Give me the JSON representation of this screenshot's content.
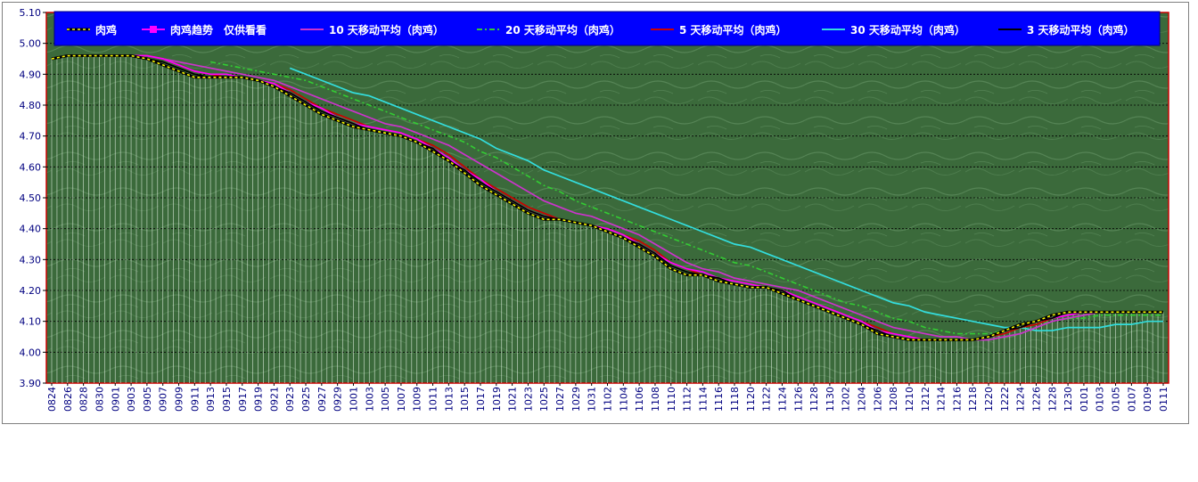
{
  "chart_data": {
    "type": "line",
    "title": "",
    "xlabel": "",
    "ylabel": "",
    "ylim": [
      3.9,
      5.1
    ],
    "y_ticks": [
      "5.10",
      "5.00",
      "4.90",
      "4.80",
      "4.70",
      "4.60",
      "4.50",
      "4.40",
      "4.30",
      "4.20",
      "4.10",
      "4.00",
      "3.90"
    ],
    "categories": [
      "0824",
      "0826",
      "0828",
      "0830",
      "0901",
      "0903",
      "0905",
      "0907",
      "0909",
      "0911",
      "0913",
      "0915",
      "0917",
      "0919",
      "0921",
      "0923",
      "0925",
      "0927",
      "0929",
      "1001",
      "1003",
      "1005",
      "1007",
      "1009",
      "1011",
      "1013",
      "1015",
      "1017",
      "1019",
      "1021",
      "1023",
      "1025",
      "1027",
      "1029",
      "1031",
      "1102",
      "1104",
      "1106",
      "1108",
      "1110",
      "1112",
      "1114",
      "1116",
      "1118",
      "1120",
      "1122",
      "1124",
      "1126",
      "1128",
      "1130",
      "1202",
      "1204",
      "1206",
      "1208",
      "1210",
      "1212",
      "1214",
      "1216",
      "1218",
      "1220",
      "1222",
      "1224",
      "1226",
      "1228",
      "1230",
      "0101",
      "0103",
      "0105",
      "0107",
      "0109",
      "0111"
    ],
    "grid": true,
    "legend_position": "top",
    "plot_background": "#3d6b3d",
    "plot_border_color": "#cc0000",
    "series": [
      {
        "name": "肉鸡",
        "color": "#000000",
        "style": "dashed-yellow",
        "values": [
          4.95,
          4.96,
          4.96,
          4.96,
          4.96,
          4.96,
          4.95,
          4.93,
          4.91,
          4.89,
          4.89,
          4.89,
          4.89,
          4.88,
          4.86,
          4.83,
          4.8,
          4.77,
          4.75,
          4.73,
          4.72,
          4.71,
          4.7,
          4.68,
          4.65,
          4.62,
          4.58,
          4.54,
          4.51,
          4.48,
          4.45,
          4.43,
          4.43,
          4.42,
          4.41,
          4.39,
          4.37,
          4.34,
          4.31,
          4.27,
          4.25,
          4.25,
          4.23,
          4.22,
          4.21,
          4.21,
          4.19,
          4.17,
          4.15,
          4.13,
          4.11,
          4.09,
          4.06,
          4.05,
          4.04,
          4.04,
          4.04,
          4.04,
          4.04,
          4.05,
          4.07,
          4.09,
          4.1,
          4.12,
          4.13,
          4.13,
          4.13,
          4.13,
          4.13,
          4.13,
          4.13
        ]
      },
      {
        "name": "肉鸡趋势　仅供看看",
        "color": "#ff00ff",
        "marker": "square",
        "values": [
          4.95,
          4.96,
          4.96,
          4.96,
          4.96,
          4.96,
          4.96,
          4.95,
          4.93,
          4.91,
          4.9,
          4.9,
          4.89,
          4.88,
          4.87,
          4.84,
          4.81,
          4.79,
          4.76,
          4.74,
          4.73,
          4.72,
          4.71,
          4.69,
          4.66,
          4.63,
          4.59,
          4.56,
          4.52,
          4.49,
          4.46,
          4.44,
          4.43,
          4.42,
          4.41,
          4.4,
          4.38,
          4.35,
          4.32,
          4.29,
          4.27,
          4.26,
          4.24,
          4.23,
          4.22,
          4.21,
          4.2,
          4.18,
          4.16,
          4.14,
          4.12,
          4.1,
          4.07,
          4.06,
          4.05,
          4.04,
          4.04,
          4.04,
          4.04,
          4.05,
          4.07,
          4.09,
          4.1,
          4.11,
          4.12,
          4.13,
          4.13,
          4.13,
          4.13,
          4.13,
          4.13
        ]
      },
      {
        "name": "10 天移动平均（肉鸡）",
        "color": "#cc33cc",
        "values": [
          null,
          null,
          null,
          null,
          4.96,
          4.96,
          4.96,
          4.95,
          4.94,
          4.93,
          4.92,
          4.91,
          4.9,
          4.89,
          4.88,
          4.86,
          4.84,
          4.82,
          4.8,
          4.78,
          4.76,
          4.74,
          4.73,
          4.71,
          4.69,
          4.67,
          4.64,
          4.61,
          4.58,
          4.55,
          4.52,
          4.49,
          4.47,
          4.45,
          4.44,
          4.42,
          4.4,
          4.38,
          4.35,
          4.32,
          4.29,
          4.27,
          4.26,
          4.24,
          4.23,
          4.22,
          4.21,
          4.2,
          4.18,
          4.16,
          4.14,
          4.12,
          4.1,
          4.08,
          4.07,
          4.06,
          4.05,
          4.05,
          4.04,
          4.04,
          4.05,
          4.06,
          4.08,
          4.1,
          4.11,
          4.12,
          4.13,
          4.13,
          4.13,
          4.13,
          4.13
        ]
      },
      {
        "name": "20 天移动平均（肉鸡）",
        "color": "#33cc33",
        "style": "dashdot",
        "values": [
          null,
          null,
          null,
          null,
          null,
          null,
          null,
          null,
          null,
          null,
          4.94,
          4.93,
          4.92,
          4.91,
          4.9,
          4.89,
          4.88,
          4.86,
          4.84,
          4.82,
          4.8,
          4.78,
          4.76,
          4.74,
          4.72,
          4.7,
          4.68,
          4.65,
          4.63,
          4.6,
          4.57,
          4.54,
          4.52,
          4.49,
          4.47,
          4.45,
          4.43,
          4.41,
          4.39,
          4.37,
          4.35,
          4.33,
          4.31,
          4.29,
          4.28,
          4.26,
          4.24,
          4.22,
          4.2,
          4.18,
          4.16,
          4.15,
          4.13,
          4.11,
          4.1,
          4.08,
          4.07,
          4.06,
          4.06,
          4.06,
          4.07,
          4.08,
          4.09,
          4.1,
          4.11,
          4.11,
          4.12,
          4.12,
          4.12,
          4.12,
          4.12
        ]
      },
      {
        "name": "5 天移动平均（肉鸡）",
        "color": "#cc0000",
        "values": [
          null,
          null,
          4.96,
          4.96,
          4.96,
          4.96,
          4.96,
          4.95,
          4.93,
          4.91,
          4.9,
          4.89,
          4.89,
          4.88,
          4.87,
          4.85,
          4.82,
          4.79,
          4.77,
          4.75,
          4.73,
          4.72,
          4.71,
          4.69,
          4.67,
          4.64,
          4.6,
          4.56,
          4.53,
          4.5,
          4.47,
          4.45,
          4.43,
          4.42,
          4.41,
          4.4,
          4.38,
          4.36,
          4.33,
          4.29,
          4.27,
          4.25,
          4.24,
          4.23,
          4.22,
          4.21,
          4.2,
          4.18,
          4.16,
          4.14,
          4.12,
          4.1,
          4.08,
          4.06,
          4.05,
          4.04,
          4.04,
          4.04,
          4.04,
          4.05,
          4.06,
          4.08,
          4.09,
          4.11,
          4.12,
          4.13,
          4.13,
          4.13,
          4.13,
          4.13,
          4.13
        ]
      },
      {
        "name": "30 天移动平均（肉鸡）",
        "color": "#33dddd",
        "values": [
          null,
          null,
          null,
          null,
          null,
          null,
          null,
          null,
          null,
          null,
          null,
          null,
          null,
          null,
          null,
          4.92,
          4.9,
          4.88,
          4.86,
          4.84,
          4.83,
          4.81,
          4.79,
          4.77,
          4.75,
          4.73,
          4.71,
          4.69,
          4.66,
          4.64,
          4.62,
          4.59,
          4.57,
          4.55,
          4.53,
          4.51,
          4.49,
          4.47,
          4.45,
          4.43,
          4.41,
          4.39,
          4.37,
          4.35,
          4.34,
          4.32,
          4.3,
          4.28,
          4.26,
          4.24,
          4.22,
          4.2,
          4.18,
          4.16,
          4.15,
          4.13,
          4.12,
          4.11,
          4.1,
          4.09,
          4.08,
          4.08,
          4.07,
          4.07,
          4.08,
          4.08,
          4.08,
          4.09,
          4.09,
          4.1,
          4.1
        ]
      },
      {
        "name": "3 天移动平均（肉鸡）",
        "color": "#000000",
        "values": [
          4.95,
          4.96,
          4.96,
          4.96,
          4.96,
          4.96,
          4.95,
          4.94,
          4.92,
          4.9,
          4.89,
          4.89,
          4.89,
          4.88,
          4.86,
          4.84,
          4.81,
          4.78,
          4.76,
          4.74,
          4.72,
          4.71,
          4.7,
          4.68,
          4.66,
          4.62,
          4.59,
          4.55,
          4.52,
          4.49,
          4.46,
          4.44,
          4.43,
          4.42,
          4.41,
          4.39,
          4.37,
          4.35,
          4.32,
          4.28,
          4.26,
          4.25,
          4.24,
          4.22,
          4.21,
          4.21,
          4.2,
          4.17,
          4.15,
          4.13,
          4.11,
          4.09,
          4.07,
          4.05,
          4.04,
          4.04,
          4.04,
          4.04,
          4.04,
          4.05,
          4.07,
          4.08,
          4.1,
          4.11,
          4.13,
          4.13,
          4.13,
          4.13,
          4.13,
          4.13,
          4.13
        ]
      }
    ]
  }
}
